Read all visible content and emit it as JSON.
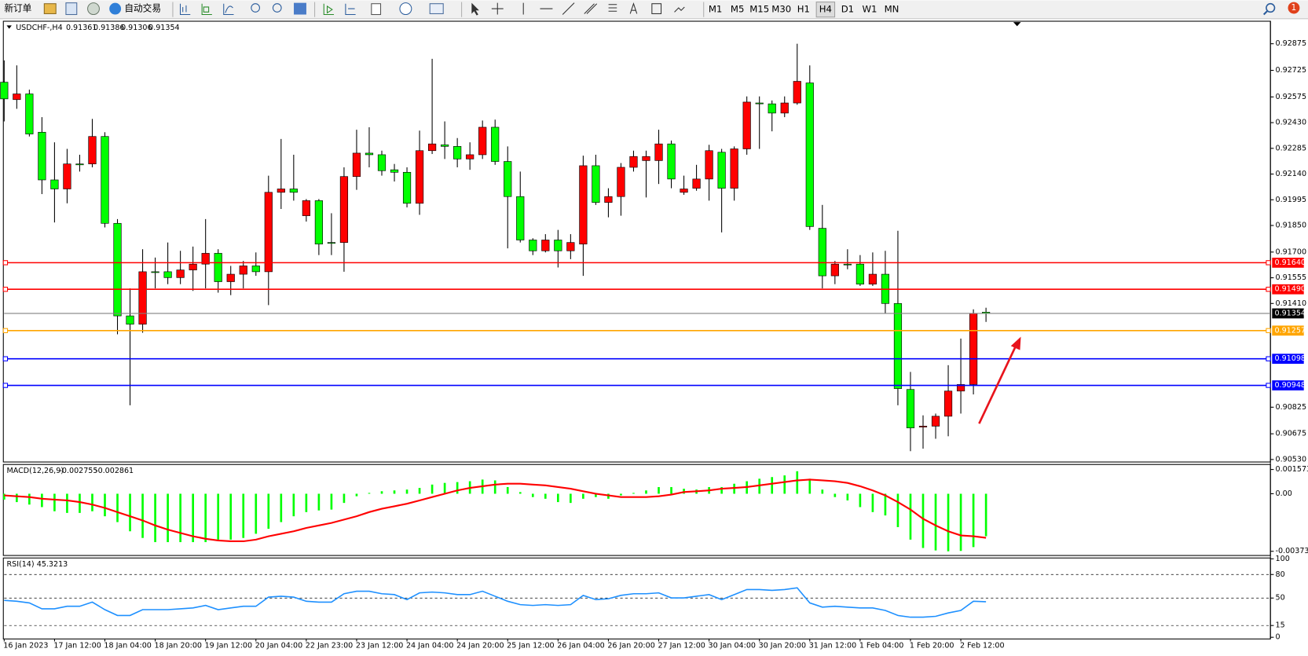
{
  "toolbar": {
    "new_order": "新订单",
    "auto_trading": "自动交易",
    "timeframes": [
      "M1",
      "M5",
      "M15",
      "M30",
      "H1",
      "H4",
      "D1",
      "W1",
      "MN"
    ],
    "active_timeframe": "H4",
    "notifications": 1
  },
  "chart_data": [
    {
      "type": "candlestick",
      "title": "USDCHF-,H4",
      "categories": [
        "16 Jan 2023",
        null,
        null,
        null,
        "17 Jan 12:00",
        null,
        null,
        null,
        "18 Jan 04:00",
        null,
        null,
        null,
        "18 Jan 20:00",
        null,
        null,
        null,
        "19 Jan 12:00",
        null,
        null,
        null,
        "20 Jan 04:00",
        null,
        null,
        null,
        "22 Jan 23:00",
        null,
        null,
        null,
        "23 Jan 12:00",
        null,
        null,
        null,
        "24 Jan 04:00",
        null,
        null,
        null,
        "24 Jan 20:00",
        null,
        null,
        null,
        "25 Jan 12:00",
        null,
        null,
        null,
        "26 Jan 04:00",
        null,
        null,
        null,
        "26 Jan 20:00",
        null,
        null,
        null,
        "27 Jan 12:00",
        null,
        null,
        null,
        "30 Jan 04:00",
        null,
        null,
        null,
        "30 Jan 20:00",
        null,
        null,
        null,
        "31 Jan 12:00",
        null,
        null,
        null,
        "1 Feb 04:00",
        null,
        null,
        null,
        "1 Feb 20:00",
        null,
        null,
        null,
        "2 Feb 12:00",
        null,
        null
      ],
      "open": [
        0.92658,
        0.9256,
        0.92592,
        0.92376,
        0.92107,
        0.92056,
        0.92197,
        0.92197,
        0.92352,
        0.91862,
        0.9134,
        0.91293,
        0.91589,
        0.91589,
        0.91556,
        0.91599,
        0.91632,
        0.91693,
        0.91533,
        0.91575,
        0.91622,
        0.91589,
        0.92037,
        0.92056,
        0.91905,
        0.9199,
        0.91754,
        0.91754,
        0.92126,
        0.92258,
        0.92249,
        0.92164,
        0.9215,
        0.91975,
        0.92272,
        0.92305,
        0.92296,
        0.92225,
        0.92249,
        0.92404,
        0.92211,
        0.92013,
        0.91768,
        0.91707,
        0.91768,
        0.91707,
        0.91745,
        0.92187,
        0.9198,
        0.92013,
        0.92178,
        0.92216,
        0.92216,
        0.9231,
        0.92037,
        0.9206,
        0.92112,
        0.92263,
        0.9206,
        0.92282,
        0.92541,
        0.92536,
        0.92484,
        0.92541,
        0.92654,
        0.91834,
        0.91566,
        0.91632,
        0.91632,
        0.91519,
        0.91575,
        0.9141,
        0.90925,
        0.90713,
        0.90718,
        0.90774,
        0.90916,
        0.90953,
        0.91361
      ],
      "high": [
        0.92781,
        0.92753,
        0.92616,
        0.92461,
        0.92319,
        0.92282,
        0.92249,
        0.92451,
        0.92376,
        0.91886,
        0.91495,
        0.91716,
        0.91669,
        0.91754,
        0.91707,
        0.91731,
        0.91886,
        0.91716,
        0.91622,
        0.9165,
        0.91698,
        0.92131,
        0.92338,
        0.92249,
        0.91999,
        0.91999,
        0.91919,
        0.92178,
        0.9239,
        0.92404,
        0.92272,
        0.92197,
        0.92178,
        0.92385,
        0.9279,
        0.92437,
        0.92343,
        0.92319,
        0.92442,
        0.92447,
        0.92296,
        0.92154,
        0.91778,
        0.91801,
        0.91825,
        0.91801,
        0.92244,
        0.92249,
        0.9206,
        0.92202,
        0.92272,
        0.92272,
        0.9239,
        0.92329,
        0.92131,
        0.92192,
        0.92305,
        0.92282,
        0.92296,
        0.92578,
        0.92578,
        0.92555,
        0.92578,
        0.92875,
        0.92753,
        0.91966,
        0.9165,
        0.91716,
        0.91683,
        0.91698,
        0.91707,
        0.9182,
        0.91024,
        0.90779,
        0.90789,
        0.91062,
        0.91212,
        0.91377,
        0.91386
      ],
      "low": [
        0.92437,
        0.92508,
        0.92352,
        0.92027,
        0.91867,
        0.91975,
        0.92154,
        0.92178,
        0.91839,
        0.91236,
        0.90836,
        0.91245,
        0.91495,
        0.91519,
        0.91519,
        0.91481,
        0.91495,
        0.91471,
        0.91457,
        0.91495,
        0.91566,
        0.91401,
        0.91943,
        0.9199,
        0.91872,
        0.91683,
        0.91683,
        0.91589,
        0.92051,
        0.92178,
        0.92131,
        0.92098,
        0.91952,
        0.9191,
        0.92253,
        0.92225,
        0.92178,
        0.92164,
        0.92225,
        0.92192,
        0.91721,
        0.91754,
        0.91683,
        0.91698,
        0.91613,
        0.9166,
        0.91566,
        0.91966,
        0.91896,
        0.91905,
        0.92154,
        0.92008,
        0.92084,
        0.9206,
        0.92023,
        0.92046,
        0.9199,
        0.91811,
        0.9199,
        0.92249,
        0.92282,
        0.92381,
        0.92461,
        0.92531,
        0.91825,
        0.91495,
        0.91519,
        0.91603,
        0.91509,
        0.91509,
        0.91354,
        0.90836,
        0.90577,
        0.90591,
        0.90647,
        0.90661,
        0.90789,
        0.90897,
        0.91306
      ],
      "close": [
        0.92564,
        0.92592,
        0.92366,
        0.92107,
        0.92056,
        0.92197,
        0.92192,
        0.92352,
        0.91862,
        0.9134,
        0.91293,
        0.91589,
        0.91585,
        0.91556,
        0.91599,
        0.91632,
        0.91693,
        0.91533,
        0.91575,
        0.91622,
        0.91589,
        0.92037,
        0.92056,
        0.92037,
        0.9199,
        0.91745,
        0.91754,
        0.92126,
        0.92258,
        0.92249,
        0.92159,
        0.9215,
        0.91975,
        0.92272,
        0.9231,
        0.92296,
        0.92225,
        0.92249,
        0.92404,
        0.92211,
        0.92013,
        0.91768,
        0.91707,
        0.91768,
        0.91707,
        0.91754,
        0.92187,
        0.9198,
        0.92013,
        0.92178,
        0.92239,
        0.92239,
        0.9231,
        0.92112,
        0.92056,
        0.92112,
        0.92272,
        0.9206,
        0.92282,
        0.92546,
        0.92536,
        0.92484,
        0.92541,
        0.92663,
        0.91844,
        0.91566,
        0.91632,
        0.91632,
        0.91519,
        0.91575,
        0.9141,
        0.9093,
        0.90708,
        0.90718,
        0.90774,
        0.90916,
        0.90953,
        0.91354,
        0.91354
      ],
      "up_color": "#ff0000",
      "down_color": "#00ff00",
      "last_price_color": "#808080",
      "ylim": [
        0.90516,
        0.93002
      ],
      "yticks": [
        0.92875,
        0.92725,
        0.92575,
        {
          "value": 0.9243,
          "label": "0.92430"
        },
        0.92285,
        {
          "value": 0.9214,
          "label": "0.92140"
        },
        0.91995,
        {
          "value": 0.9185,
          "label": "0.91850"
        },
        {
          "value": 0.917,
          "label": "0.91700"
        },
        0.91555,
        {
          "value": 0.9141,
          "label": "0.91410"
        },
        0.90825,
        0.90675,
        {
          "value": 0.9053,
          "label": "0.90530"
        }
      ],
      "hlines": [
        {
          "value": 0.9164,
          "label": "0.91640",
          "color": "#ff0000"
        },
        {
          "value": 0.9149,
          "label": "0.91490",
          "color": "#ff0000"
        },
        {
          "value": 0.91257,
          "label": "0.91257",
          "color": "#ffa500"
        },
        {
          "value": 0.91098,
          "label": "0.91098",
          "color": "#0000ff"
        },
        {
          "value": 0.90948,
          "label": "0.90948",
          "color": "#0000ff"
        }
      ]
    },
    {
      "type": "macd",
      "title": "MACD(12,26,9)",
      "values": [
        -0.000379,
        -0.000541,
        -0.000703,
        -0.000866,
        -0.001136,
        -0.001244,
        -0.001244,
        -0.001136,
        -0.001461,
        -0.001839,
        -0.002435,
        -0.002867,
        -0.003138,
        -0.003138,
        -0.003138,
        -0.003138,
        -0.003138,
        -0.002976,
        -0.002976,
        -0.002867,
        -0.002597,
        -0.002272,
        -0.001839,
        -0.001461,
        -0.00119,
        -0.001082,
        -0.001028,
        -0.000595,
        -0.000162,
        5.4e-05,
        0.000162,
        0.000216,
        0.000271,
        0.000379,
        0.000595,
        0.000703,
        0.000757,
        0.000812,
        0.00092,
        0.000866,
        0.000433,
        0.000108,
        -0.000216,
        -0.000325,
        -0.000541,
        -0.000595,
        -0.000325,
        -0.000216,
        -0.000325,
        -0.000108,
        5.4e-05,
        0.000216,
        0.000433,
        0.000433,
        0.000325,
        0.000271,
        0.000433,
        0.000433,
        0.000649,
        0.000812,
        0.000974,
        0.001082,
        0.00119,
        0.001461,
        0.000974,
        0.000271,
        -0.000216,
        -0.000433,
        -0.000866,
        -0.00119,
        -0.001407,
        -0.002164,
        -0.002976,
        -0.003517,
        -0.003679,
        -0.003733,
        -0.003706,
        -0.003463,
        -0.002755
      ],
      "signal": [
        -0.000108,
        -0.000162,
        -0.000216,
        -0.000325,
        -0.000379,
        -0.000433,
        -0.000541,
        -0.000703,
        -0.00092,
        -0.00119,
        -0.001461,
        -0.001731,
        -0.002056,
        -0.002326,
        -0.002543,
        -0.002759,
        -0.002921,
        -0.00303,
        -0.003084,
        -0.003084,
        -0.002976,
        -0.002759,
        -0.002597,
        -0.002435,
        -0.002218,
        -0.002056,
        -0.001894,
        -0.001677,
        -0.001461,
        -0.00119,
        -0.000974,
        -0.000812,
        -0.000649,
        -0.000433,
        -0.000216,
        0,
        0.000216,
        0.000379,
        0.000487,
        0.000595,
        0.000649,
        0.000649,
        0.000595,
        0.000541,
        0.000433,
        0.000325,
        0.000162,
        0,
        -0.000108,
        -0.000216,
        -0.000216,
        -0.000216,
        -0.000162,
        -5.4e-05,
        0.000108,
        0.000162,
        0.000216,
        0.000325,
        0.000379,
        0.000433,
        0.000541,
        0.000649,
        0.000757,
        0.000866,
        0.00092,
        0.000866,
        0.000812,
        0.000703,
        0.000487,
        0.000216,
        -0.000108,
        -0.000541,
        -0.001028,
        -0.001623,
        -0.002056,
        -0.002435,
        -0.002705,
        -0.002759,
        -0.002861
      ],
      "color": "#00ff00",
      "signal_color": "#ff0000",
      "ylim": [
        -0.003733,
        0.001573
      ],
      "yticks": [
        0.001573,
        {
          "value": 0,
          "label": "0.00"
        },
        -0.003733
      ]
    },
    {
      "type": "line",
      "title": "RSI(14)",
      "values": [
        47.0,
        45.9,
        43.8,
        36.3,
        36.3,
        39.5,
        39.5,
        44.8,
        35.2,
        27.8,
        27.8,
        35.2,
        35.2,
        35.2,
        36.3,
        37.4,
        40.6,
        35.2,
        37.4,
        39.5,
        39.5,
        51.2,
        52.3,
        51.2,
        45.9,
        44.8,
        44.8,
        55.5,
        58.7,
        58.7,
        55.5,
        54.4,
        48.0,
        56.6,
        57.6,
        56.6,
        54.4,
        54.4,
        58.7,
        52.3,
        45.9,
        41.6,
        40.6,
        41.6,
        40.6,
        41.6,
        53.4,
        48.0,
        49.1,
        53.4,
        55.5,
        55.5,
        56.6,
        50.2,
        50.2,
        52.3,
        54.4,
        48.0,
        54.4,
        60.8,
        60.8,
        59.8,
        60.8,
        63.0,
        43.8,
        38.4,
        39.5,
        38.4,
        37.4,
        37.4,
        34.2,
        27.8,
        25.6,
        25.6,
        26.7,
        31.0,
        34.2,
        45.9,
        45.3213
      ],
      "color": "#1e90ff",
      "ylim": [
        0,
        100
      ],
      "yticks": [
        100,
        80,
        50,
        15,
        0
      ]
    }
  ]
}
